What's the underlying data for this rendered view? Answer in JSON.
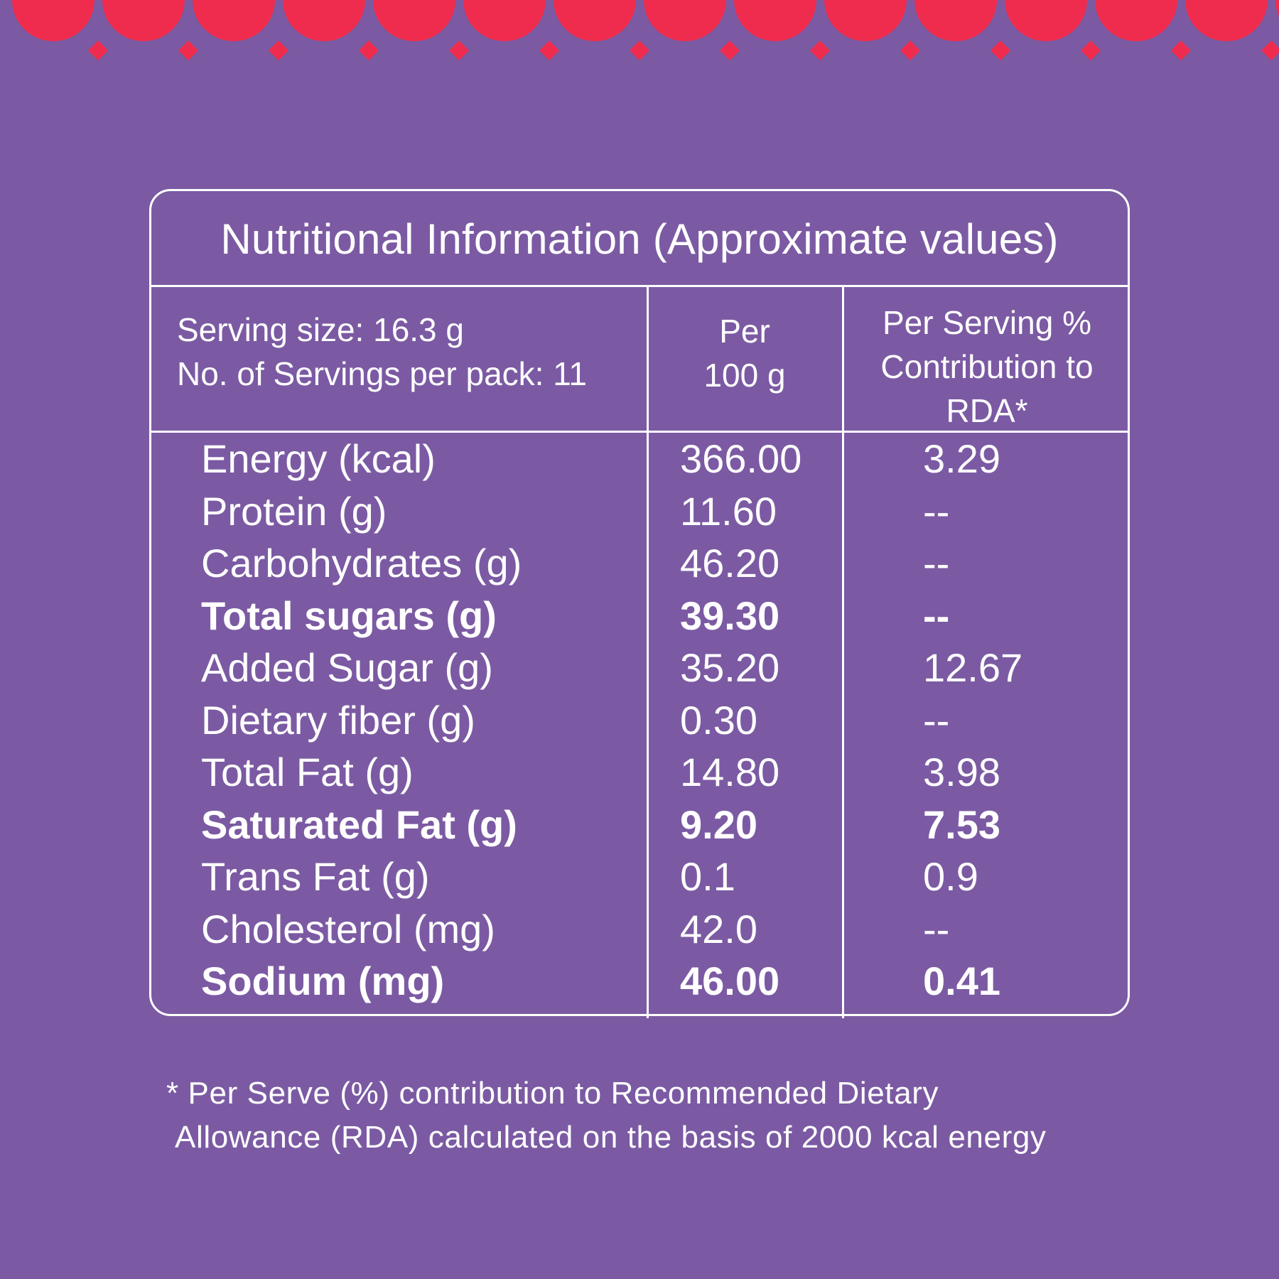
{
  "colors": {
    "background": "#7b5aa3",
    "accent_red": "#ef2c4d",
    "text": "#ffffff",
    "lines": "#ffffff"
  },
  "decor": {
    "description": "scalloped-edge-with-diamonds",
    "icon": "scallop-border-decoration"
  },
  "panel": {
    "title": "Nutritional Information (Approximate values)",
    "header": {
      "serving_size": "Serving size: 16.3 g",
      "servings_per_pack": "No. of Servings per pack: 11",
      "per_100g_line1": "Per",
      "per_100g_line2": "100 g",
      "rda_line1": "Per Serving %",
      "rda_line2": "Contribution to",
      "rda_line3": "RDA*"
    },
    "rows": [
      {
        "name": "Energy (kcal)",
        "per100": "366.00",
        "rda": "3.29",
        "bold": false
      },
      {
        "name": "Protein (g)",
        "per100": "11.60",
        "rda": "--",
        "bold": false
      },
      {
        "name": "Carbohydrates (g)",
        "per100": "46.20",
        "rda": "--",
        "bold": false
      },
      {
        "name": "Total sugars (g)",
        "per100": "39.30",
        "rda": "--",
        "bold": true
      },
      {
        "name": "Added Sugar (g)",
        "per100": "35.20",
        "rda": "12.67",
        "bold": false
      },
      {
        "name": "Dietary fiber (g)",
        "per100": "0.30",
        "rda": "--",
        "bold": false
      },
      {
        "name": "Total Fat (g)",
        "per100": "14.80",
        "rda": "3.98",
        "bold": false
      },
      {
        "name": "Saturated Fat (g)",
        "per100": "9.20",
        "rda": "7.53",
        "bold": true
      },
      {
        "name": "Trans Fat (g)",
        "per100": "0.1",
        "rda": "0.9",
        "bold": false
      },
      {
        "name": "Cholesterol (mg)",
        "per100": "42.0",
        "rda": "--",
        "bold": false
      },
      {
        "name": "Sodium (mg)",
        "per100": "46.00",
        "rda": "0.41",
        "bold": true
      }
    ]
  },
  "footnote": {
    "line1": "* Per Serve (%) contribution to Recommended Dietary",
    "line2": "Allowance (RDA) calculated on the basis of 2000 kcal energy"
  }
}
